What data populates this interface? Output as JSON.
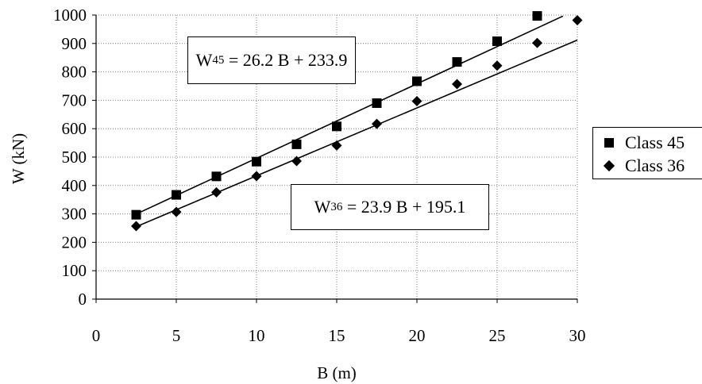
{
  "chart_data": {
    "type": "scatter",
    "xlabel": "B (m)",
    "ylabel": "W (kN)",
    "xlim": [
      0,
      30
    ],
    "ylim": [
      0,
      1000
    ],
    "xticks": [
      "0",
      "5",
      "10",
      "15",
      "20",
      "25",
      "30"
    ],
    "yticks": [
      "0",
      "100",
      "200",
      "300",
      "400",
      "500",
      "600",
      "700",
      "800",
      "900",
      "1000"
    ],
    "grid": true,
    "legend_position": "right",
    "series": [
      {
        "name": "Class 45",
        "marker": "square",
        "color": "#000000",
        "x": [
          2.5,
          5,
          7.5,
          10,
          12.5,
          15,
          17.5,
          20,
          22.5,
          25,
          27.5
        ],
        "y": [
          297,
          367,
          432,
          484,
          545,
          608,
          690,
          767,
          835,
          908,
          997
        ],
        "fit": {
          "slope": 26.2,
          "intercept": 233.9,
          "x_start": 2.5,
          "x_end": 29.1
        }
      },
      {
        "name": "Class 36",
        "marker": "diamond",
        "color": "#000000",
        "x": [
          2.5,
          5,
          7.5,
          10,
          12.5,
          15,
          17.5,
          20,
          22.5,
          25,
          27.5,
          30
        ],
        "y": [
          257,
          307,
          376,
          433,
          486,
          541,
          617,
          697,
          757,
          822,
          902,
          982
        ],
        "fit": {
          "slope": 23.9,
          "intercept": 195.1,
          "x_start": 2.5,
          "x_end": 30
        }
      }
    ],
    "annotations": [
      {
        "id": "eq45",
        "prefix": "W",
        "sub": "45",
        "text": " = 26.2 B + 233.9"
      },
      {
        "id": "eq36",
        "prefix": "W",
        "sub": "36",
        "text": " = 23.9 B + 195.1"
      }
    ]
  }
}
